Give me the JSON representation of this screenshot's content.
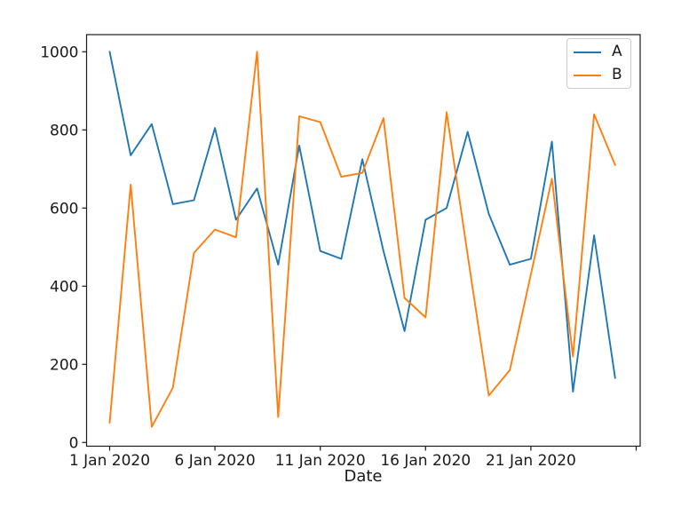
{
  "chart_data": {
    "type": "line",
    "title": "",
    "xlabel": "Date",
    "ylabel": "",
    "grid": false,
    "legend_position": "upper right",
    "x_days": [
      1,
      2,
      3,
      4,
      5,
      6,
      7,
      8,
      9,
      10,
      11,
      12,
      13,
      14,
      15,
      16,
      17,
      18,
      19,
      20,
      21,
      22,
      23,
      24,
      25
    ],
    "x_unit": "Jan 2020",
    "series": [
      {
        "name": "A",
        "color": "#1f77b4",
        "values": [
          1000,
          735,
          815,
          610,
          620,
          805,
          570,
          650,
          455,
          760,
          490,
          470,
          725,
          490,
          285,
          570,
          600,
          795,
          585,
          455,
          470,
          770,
          130,
          530,
          165
        ]
      },
      {
        "name": "B",
        "color": "#ff7f0e",
        "values": [
          50,
          660,
          40,
          140,
          485,
          545,
          525,
          1000,
          65,
          835,
          820,
          680,
          690,
          830,
          370,
          320,
          845,
          480,
          120,
          185,
          430,
          675,
          220,
          840,
          710
        ]
      }
    ],
    "x_ticks": [
      {
        "day": 1,
        "label": "1 Jan 2020"
      },
      {
        "day": 6,
        "label": "6 Jan 2020"
      },
      {
        "day": 11,
        "label": "11 Jan 2020"
      },
      {
        "day": 16,
        "label": "16 Jan 2020"
      },
      {
        "day": 21,
        "label": "21 Jan 2020"
      },
      {
        "day": 26,
        "label": ""
      }
    ],
    "y_ticks": [
      0,
      200,
      400,
      600,
      800,
      1000
    ],
    "ylim": [
      -10,
      1040
    ],
    "xlim_days": [
      -0.1,
      26.2
    ],
    "axis_color": "#1a1a1a"
  }
}
